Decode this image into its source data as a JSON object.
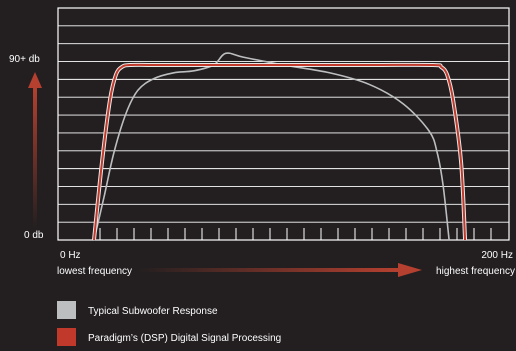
{
  "chart_data": {
    "type": "line",
    "title": "",
    "y_top_label": "90+ db",
    "y_bottom_label": "0 db",
    "x_start_label": "0 Hz",
    "x_end_label": "200 Hz",
    "x_low_caption": "lowest frequency",
    "x_high_caption": "highest frequency",
    "xlim": [
      0,
      200
    ],
    "ylim": [
      0,
      100
    ],
    "grid": true,
    "legend_position": "bottom-left",
    "colors": {
      "background": "#231f20",
      "grid": "#ffffff",
      "typical": "#bcbec0",
      "dsp": "#c0392b",
      "arrow": "#b5402f"
    },
    "series": [
      {
        "name": "Typical Subwoofer Response",
        "key": "typical",
        "x": [
          0,
          5,
          10,
          16,
          22,
          30,
          40,
          50,
          60,
          66,
          75,
          95,
          118,
          138,
          155,
          168,
          172,
          175,
          178
        ],
        "y": [
          0,
          22,
          45,
          65,
          77,
          83,
          86,
          87,
          90,
          96,
          94,
          90,
          86,
          80,
          70,
          56,
          45,
          28,
          0
        ]
      },
      {
        "name": "Paradigm's (DSP) Digital Signal Processing",
        "key": "dsp",
        "x": [
          0,
          4,
          8,
          11,
          14,
          18,
          30,
          60,
          100,
          140,
          170,
          174,
          177,
          180,
          184,
          186
        ],
        "y": [
          0,
          40,
          72,
          85,
          89,
          90,
          90,
          90,
          90,
          90,
          90,
          89,
          85,
          72,
          40,
          0
        ]
      }
    ],
    "legend": [
      {
        "label": "Typical Subwoofer Response",
        "color": "#bcbec0"
      },
      {
        "label": "Paradigm’s (DSP) Digital Signal Processing",
        "color": "#c0392b"
      }
    ]
  }
}
